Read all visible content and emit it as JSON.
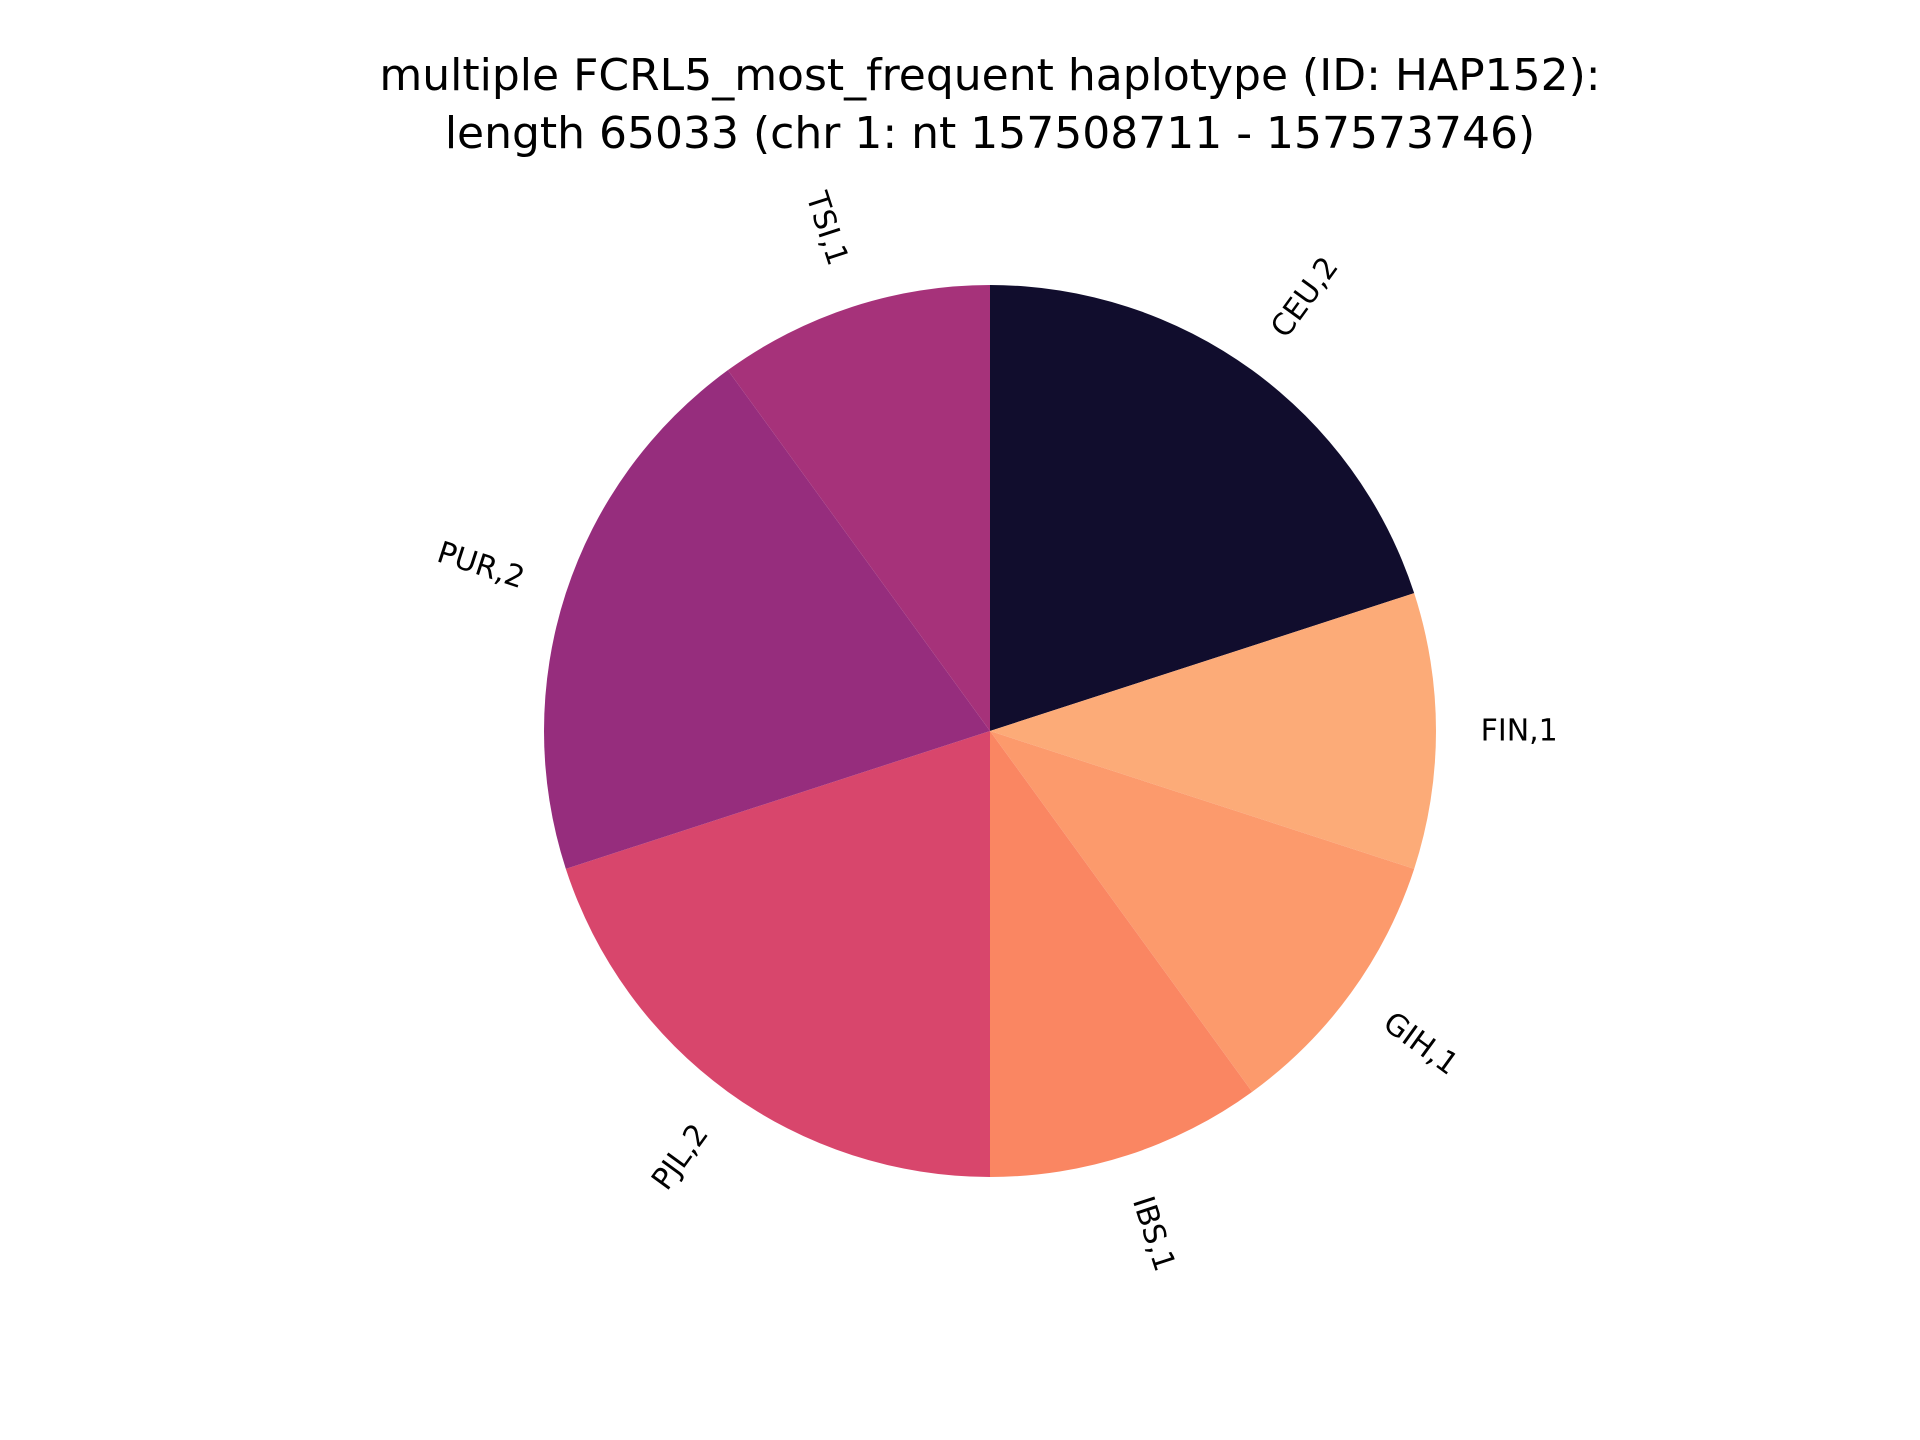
{
  "chart_data": {
    "type": "pie",
    "title_lines": [
      "multiple FCRL5_most_frequent haplotype (ID: HAP152):",
      "length 65033 (chr 1: nt 157508711 - 157573746)"
    ],
    "start_angle_deg": 90,
    "direction": "clockwise",
    "slices": [
      {
        "label": "CEU,2",
        "value": 2,
        "color": "#110d2d"
      },
      {
        "label": "FIN,1",
        "value": 1,
        "color": "#fcab78"
      },
      {
        "label": "GIH,1",
        "value": 1,
        "color": "#fc9a6c"
      },
      {
        "label": "IBS,1",
        "value": 1,
        "color": "#fa8662"
      },
      {
        "label": "PJL,2",
        "value": 2,
        "color": "#d8466c"
      },
      {
        "label": "PUR,2",
        "value": 2,
        "color": "#962d7d"
      },
      {
        "label": "TSI,1",
        "value": 1,
        "color": "#a6327a"
      }
    ]
  }
}
